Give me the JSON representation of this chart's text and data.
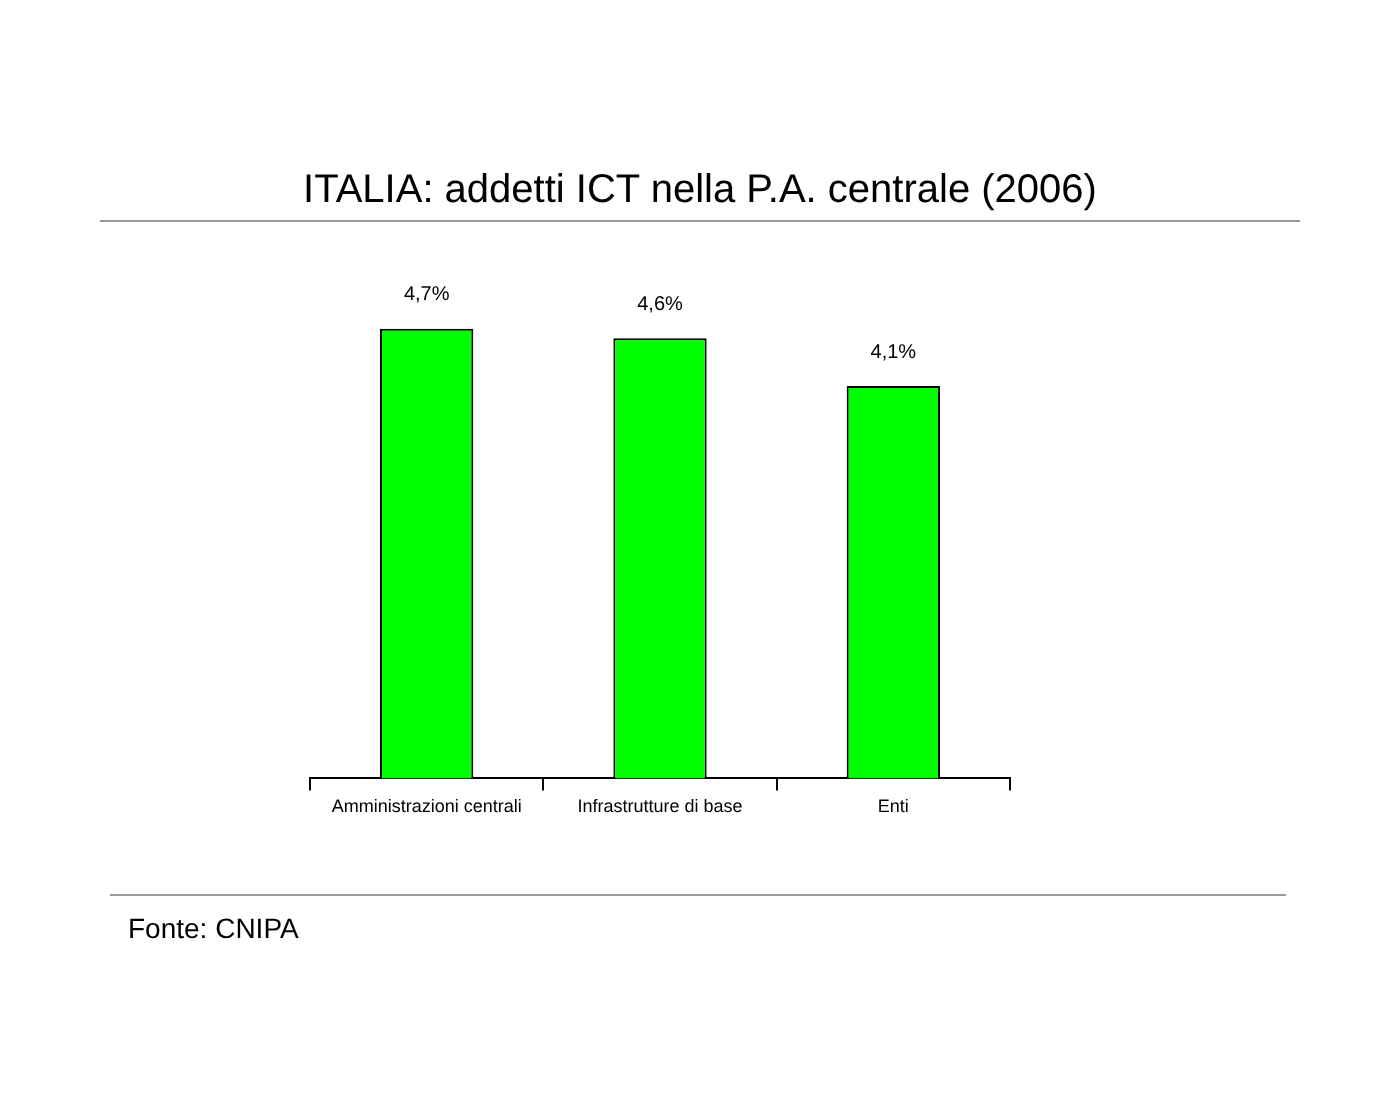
{
  "chart_data": {
    "type": "bar",
    "title": "ITALIA: addetti ICT nella P.A. centrale (2006)",
    "categories": [
      "Amministrazioni centrali",
      "Infrastrutture di base",
      "Enti"
    ],
    "values": [
      4.7,
      4.6,
      4.1
    ],
    "value_labels": [
      "4,7%",
      "4,6%",
      "4,1%"
    ],
    "color": "#00ff00",
    "tick_labels": "x",
    "grid": false,
    "legend": false,
    "annotations": [
      "Fonte: CNIPA"
    ]
  }
}
